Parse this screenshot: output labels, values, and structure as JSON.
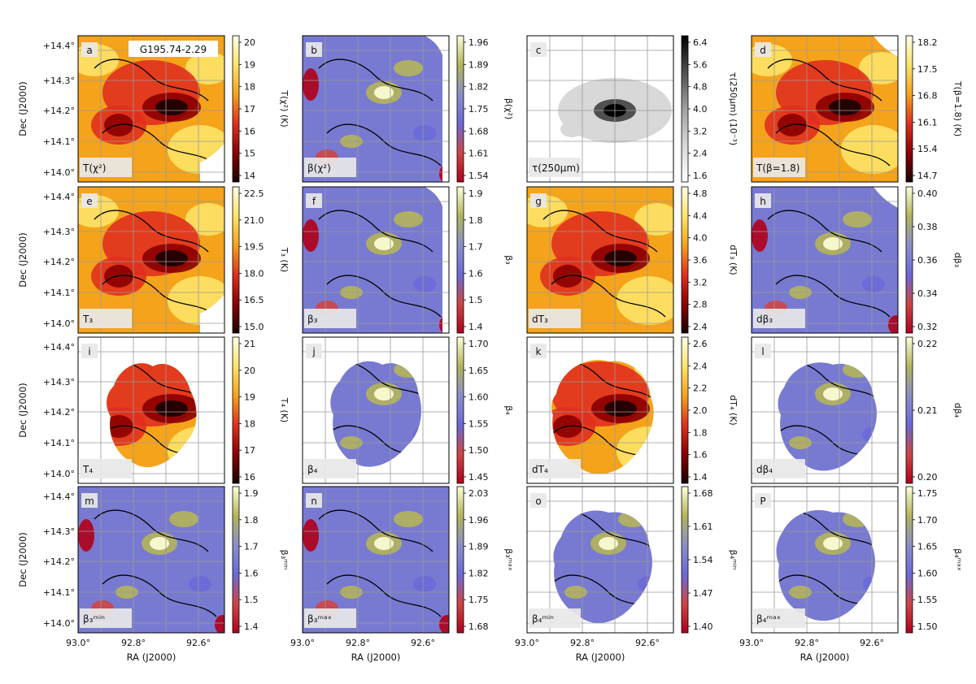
{
  "figure": {
    "region_name": "G195.74-2.29",
    "x_axis_label": "RA (J2000)",
    "y_axis_label": "Dec (J2000)",
    "x_ticks": [
      "93.0°",
      "92.8°",
      "92.6°"
    ],
    "y_ticks": [
      "+14.4°",
      "+14.3°",
      "+14.2°",
      "+14.1°",
      "+14.0°"
    ],
    "panels": [
      {
        "letter": "a",
        "label": "T(χ²)",
        "cbar_label": "T(χ²) (K)",
        "cmap": "heat",
        "cbar_ticks": [
          "20",
          "19",
          "18",
          "17",
          "16",
          "15",
          "14"
        ],
        "mask": "full-a"
      },
      {
        "letter": "b",
        "label": "β(χ²)",
        "cbar_label": "β(χ²)",
        "cmap": "beta",
        "cbar_ticks": [
          "1.96",
          "1.89",
          "1.82",
          "1.75",
          "1.68",
          "1.61",
          "1.54"
        ],
        "mask": "full-b"
      },
      {
        "letter": "c",
        "label": "τ(250μm)",
        "cbar_label": "τ(250μm) (10⁻³)",
        "cmap": "gray",
        "cbar_ticks": [
          "6.4",
          "5.6",
          "4.8",
          "4.0",
          "3.2",
          "2.4",
          "1.6"
        ],
        "mask": "full-c"
      },
      {
        "letter": "d",
        "label": "T(β=1.8)",
        "cbar_label": "T(β=1.8) (K)",
        "cmap": "heat",
        "cbar_ticks": [
          "18.2",
          "17.5",
          "16.8",
          "16.1",
          "15.4",
          "14.7"
        ],
        "mask": "full-d"
      },
      {
        "letter": "e",
        "label": "T₃",
        "cbar_label": "T₃ (K)",
        "cmap": "heat",
        "cbar_ticks": [
          "22.5",
          "21.0",
          "19.5",
          "18.0",
          "16.5",
          "15.0"
        ],
        "mask": "full-a"
      },
      {
        "letter": "f",
        "label": "β₃",
        "cbar_label": "β₃",
        "cmap": "beta",
        "cbar_ticks": [
          "1.9",
          "1.8",
          "1.7",
          "1.6",
          "1.5",
          "1.4"
        ],
        "mask": "full-b"
      },
      {
        "letter": "g",
        "label": "dT₃",
        "cbar_label": "dT₃ (K)",
        "cmap": "heat",
        "cbar_ticks": [
          "4.8",
          "4.4",
          "4.0",
          "3.6",
          "3.2",
          "2.8",
          "2.4"
        ],
        "mask": "full-c"
      },
      {
        "letter": "h",
        "label": "dβ₃",
        "cbar_label": "dβ₃",
        "cmap": "beta",
        "cbar_ticks": [
          "0.40",
          "0.38",
          "0.36",
          "0.34",
          "0.32"
        ],
        "mask": "full-d"
      },
      {
        "letter": "i",
        "label": "T₄",
        "cbar_label": "T₄ (K)",
        "cmap": "heat",
        "cbar_ticks": [
          "21",
          "20",
          "19",
          "18",
          "17",
          "16"
        ],
        "mask": "blob-i"
      },
      {
        "letter": "j",
        "label": "β₄",
        "cbar_label": "β₄",
        "cmap": "beta",
        "cbar_ticks": [
          "1.70",
          "1.65",
          "1.60",
          "1.55",
          "1.50",
          "1.45"
        ],
        "mask": "blob-j"
      },
      {
        "letter": "k",
        "label": "dT₄",
        "cbar_label": "dT₄ (K)",
        "cmap": "heat",
        "cbar_ticks": [
          "2.6",
          "2.4",
          "2.2",
          "2.0",
          "1.8",
          "1.6",
          "1.4"
        ],
        "mask": "blob-k"
      },
      {
        "letter": "l",
        "label": "dβ₄",
        "cbar_label": "dβ₄",
        "cmap": "beta",
        "cbar_ticks": [
          "0.22",
          "0.21",
          "0.20"
        ],
        "mask": "blob-l"
      },
      {
        "letter": "m",
        "label": "β₃ᵐⁱⁿ",
        "cbar_label": "β₃ᵐⁱⁿ",
        "cmap": "beta",
        "cbar_ticks": [
          "1.9",
          "1.8",
          "1.7",
          "1.6",
          "1.5",
          "1.4"
        ],
        "mask": "full-m"
      },
      {
        "letter": "n",
        "label": "β₃ᵐᵃˣ",
        "cbar_label": "β₃ᵐᵃˣ",
        "cmap": "beta",
        "cbar_ticks": [
          "2.03",
          "1.96",
          "1.89",
          "1.82",
          "1.75",
          "1.68"
        ],
        "mask": "full-m"
      },
      {
        "letter": "o",
        "label": "β₄ᵐⁱⁿ",
        "cbar_label": "β₄ᵐⁱⁿ",
        "cmap": "beta",
        "cbar_ticks": [
          "1.68",
          "1.61",
          "1.54",
          "1.47",
          "1.40"
        ],
        "mask": "blob-o"
      },
      {
        "letter": "P",
        "label": "β₄ᵐᵃˣ",
        "cbar_label": "β₄ᵐᵃˣ",
        "cmap": "beta",
        "cbar_ticks": [
          "1.75",
          "1.70",
          "1.65",
          "1.60",
          "1.55",
          "1.50"
        ],
        "mask": "blob-p"
      }
    ]
  },
  "colormaps": {
    "heat": [
      "#1a0000",
      "#8b0000",
      "#e0301e",
      "#f5a31a",
      "#fde368",
      "#ffffe8"
    ],
    "beta": [
      "#b0001a",
      "#d04545",
      "#6a6ad8",
      "#8a8fc8",
      "#b4b45a",
      "#ffffd8"
    ],
    "gray": [
      "#ffffff",
      "#d8d8d8",
      "#a0a0a0",
      "#505050",
      "#000000"
    ]
  }
}
